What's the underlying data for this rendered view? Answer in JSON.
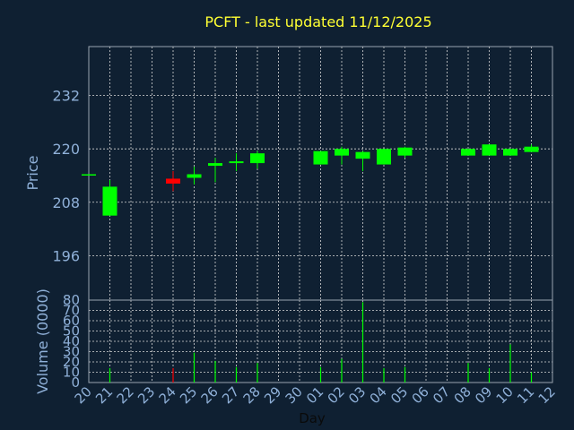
{
  "chart_data": {
    "type": "candlestick",
    "title": "PCFT - last updated 11/12/2025",
    "price_label": "Price",
    "volume_label": "Volume (0000)",
    "xlabel": "Day",
    "price_ticks": [
      196,
      208,
      220,
      232
    ],
    "price_range": [
      186,
      243
    ],
    "volume_ticks": [
      0,
      10,
      20,
      30,
      40,
      50,
      60,
      70,
      80
    ],
    "volume_range": [
      0,
      80
    ],
    "x_ticks": [
      "20",
      "21",
      "22",
      "23",
      "24",
      "25",
      "26",
      "27",
      "28",
      "29",
      "30",
      "01",
      "02",
      "03",
      "04",
      "05",
      "06",
      "07",
      "08",
      "09",
      "10",
      "11",
      "12"
    ],
    "grid": true,
    "colors": {
      "up": "#00ff00",
      "down": "#ff0000",
      "title": "#ffff33",
      "axis_text": "#8fb0d8",
      "background": "#0f2032"
    },
    "candles": [
      {
        "day": "20",
        "open": 214.3,
        "close": 214.3,
        "high": 214.3,
        "low": 214.3,
        "volume": 0
      },
      {
        "day": "21",
        "open": 205.0,
        "close": 211.5,
        "high": 213.0,
        "low": 205.0,
        "volume": 14
      },
      {
        "day": "24",
        "open": 213.3,
        "close": 212.2,
        "high": 215.0,
        "low": 210.5,
        "volume": 14
      },
      {
        "day": "25",
        "open": 213.5,
        "close": 214.3,
        "high": 216.0,
        "low": 212.0,
        "volume": 29
      },
      {
        "day": "26",
        "open": 216.2,
        "close": 216.8,
        "high": 218.0,
        "low": 212.5,
        "volume": 21
      },
      {
        "day": "27",
        "open": 216.8,
        "close": 217.2,
        "high": 219.0,
        "low": 215.0,
        "volume": 15
      },
      {
        "day": "28",
        "open": 216.8,
        "close": 219.0,
        "high": 219.5,
        "low": 215.5,
        "volume": 19
      },
      {
        "day": "01",
        "open": 216.5,
        "close": 219.5,
        "high": 219.5,
        "low": 216.5,
        "volume": 15
      },
      {
        "day": "02",
        "open": 218.5,
        "close": 220.0,
        "high": 220.5,
        "low": 216.5,
        "volume": 23
      },
      {
        "day": "03",
        "open": 217.8,
        "close": 219.3,
        "high": 219.5,
        "low": 215.0,
        "volume": 78
      },
      {
        "day": "04",
        "open": 216.5,
        "close": 220.0,
        "high": 220.0,
        "low": 216.5,
        "volume": 14
      },
      {
        "day": "05",
        "open": 218.5,
        "close": 220.3,
        "high": 220.5,
        "low": 218.0,
        "volume": 15
      },
      {
        "day": "08",
        "open": 218.5,
        "close": 220.0,
        "high": 220.0,
        "low": 218.5,
        "volume": 19
      },
      {
        "day": "09",
        "open": 218.5,
        "close": 221.0,
        "high": 221.0,
        "low": 218.5,
        "volume": 14
      },
      {
        "day": "10",
        "open": 218.5,
        "close": 220.0,
        "high": 220.0,
        "low": 218.5,
        "volume": 37
      },
      {
        "day": "11",
        "open": 219.3,
        "close": 220.5,
        "high": 221.0,
        "low": 219.3,
        "volume": 10
      }
    ]
  }
}
